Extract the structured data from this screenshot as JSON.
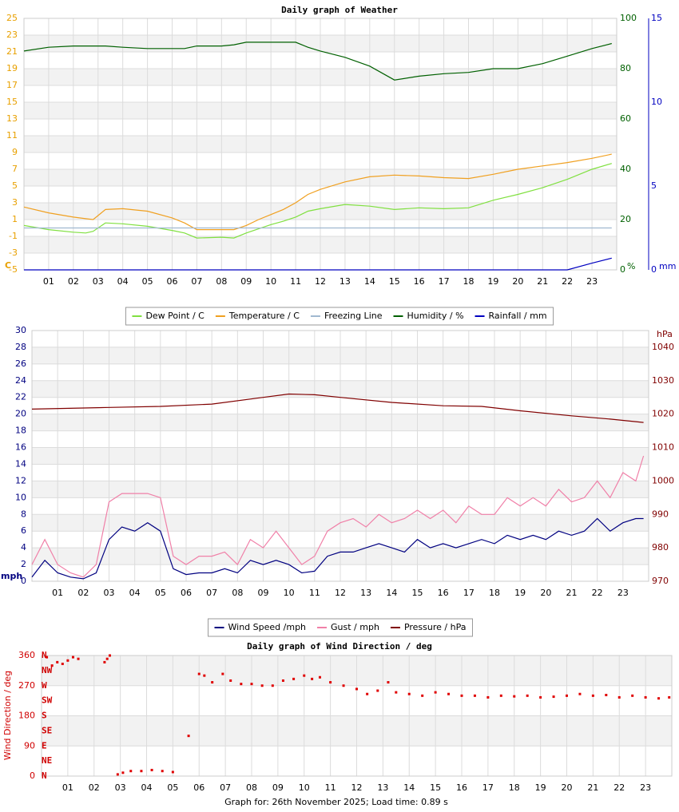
{
  "chart_data": [
    {
      "type": "line",
      "title": "Daily graph of Weather",
      "xlim": [
        0,
        24
      ],
      "xticks": [
        {
          "value": 1,
          "label": "01"
        },
        {
          "value": 2,
          "label": "02"
        },
        {
          "value": 3,
          "label": "03"
        },
        {
          "value": 4,
          "label": "04"
        },
        {
          "value": 5,
          "label": "05"
        },
        {
          "value": 6,
          "label": "06"
        },
        {
          "value": 7,
          "label": "07"
        },
        {
          "value": 8,
          "label": "08"
        },
        {
          "value": 9,
          "label": "09"
        },
        {
          "value": 10,
          "label": "10"
        },
        {
          "value": 11,
          "label": "11"
        },
        {
          "value": 12,
          "label": "12"
        },
        {
          "value": 13,
          "label": "13"
        },
        {
          "value": 14,
          "label": "14"
        },
        {
          "value": 15,
          "label": "15"
        },
        {
          "value": 16,
          "label": "16"
        },
        {
          "value": 17,
          "label": "17"
        },
        {
          "value": 18,
          "label": "18"
        },
        {
          "value": 19,
          "label": "19"
        },
        {
          "value": 20,
          "label": "20"
        },
        {
          "value": 21,
          "label": "21"
        },
        {
          "value": 22,
          "label": "22"
        },
        {
          "value": 23,
          "label": "23"
        }
      ],
      "ylim": [
        -5,
        25
      ],
      "yticks": [
        -5,
        -3,
        -1,
        1,
        3,
        5,
        7,
        9,
        11,
        13,
        15,
        17,
        19,
        21,
        23,
        25
      ],
      "ylabel": "C",
      "ycolor": "#e8a000",
      "y2lim": [
        0,
        100
      ],
      "y2ticks": [
        0,
        20,
        40,
        60,
        80,
        100
      ],
      "y2label": "%",
      "y2color": "#006000",
      "y3lim": [
        0,
        15
      ],
      "y3ticks": [
        0,
        5,
        10,
        15
      ],
      "y3label": "mm",
      "y3color": "#0000c0",
      "grid": true,
      "legend": "bottom",
      "x": [
        0,
        1,
        2,
        2.5,
        2.8,
        3.3,
        4,
        5,
        6,
        6.5,
        7,
        8,
        8.5,
        9,
        9.5,
        10,
        10.5,
        11,
        11.5,
        12,
        13,
        14,
        15,
        16,
        17,
        18,
        19,
        20,
        21,
        22,
        23,
        23.8
      ],
      "series": [
        {
          "name": "Dew Point / C",
          "color": "#80e040",
          "values": [
            0.3,
            -0.2,
            -0.5,
            -0.6,
            -0.4,
            0.6,
            0.5,
            0.2,
            -0.3,
            -0.6,
            -1.2,
            -1.1,
            -1.2,
            -0.6,
            -0.1,
            0.4,
            0.8,
            1.3,
            2.0,
            2.3,
            2.8,
            2.6,
            2.2,
            2.4,
            2.3,
            2.4,
            3.3,
            4.0,
            4.8,
            5.8,
            7.0,
            7.7
          ]
        },
        {
          "name": "Temperature / C",
          "color": "#f0a020",
          "values": [
            2.5,
            1.8,
            1.3,
            1.1,
            1.0,
            2.2,
            2.3,
            2.0,
            1.2,
            0.6,
            -0.2,
            -0.2,
            -0.2,
            0.3,
            1.0,
            1.6,
            2.2,
            3.0,
            4.0,
            4.6,
            5.5,
            6.1,
            6.3,
            6.2,
            6.0,
            5.9,
            6.4,
            7.0,
            7.4,
            7.8,
            8.3,
            8.8
          ]
        },
        {
          "name": "Freezing Line",
          "color": "#a0b8d0",
          "values": [
            0,
            0,
            0,
            0,
            0,
            0,
            0,
            0,
            0,
            0,
            0,
            0,
            0,
            0,
            0,
            0,
            0,
            0,
            0,
            0,
            0,
            0,
            0,
            0,
            0,
            0,
            0,
            0,
            0,
            0,
            0,
            0
          ]
        },
        {
          "name": "Humidity / %",
          "color": "#006000",
          "axis": "y2",
          "values": [
            87,
            88.5,
            89,
            89,
            89,
            89,
            88.5,
            88,
            88,
            88,
            89,
            89,
            89.5,
            90.5,
            90.5,
            90.5,
            90.5,
            90.5,
            88.5,
            87,
            84.5,
            81,
            75.5,
            77,
            78,
            78.5,
            80,
            80,
            82,
            85,
            88,
            90
          ]
        },
        {
          "name": "Rainfall / mm",
          "color": "#0000c0",
          "axis": "y3",
          "values": [
            0,
            0,
            0,
            0,
            0,
            0,
            0,
            0,
            0,
            0,
            0,
            0,
            0,
            0,
            0,
            0,
            0,
            0,
            0,
            0,
            0,
            0,
            0,
            0,
            0,
            0,
            0,
            0,
            0,
            0,
            0.4,
            0.7
          ]
        }
      ]
    },
    {
      "type": "line",
      "xlim": [
        0,
        24
      ],
      "xticks": [
        {
          "value": 1,
          "label": "01"
        },
        {
          "value": 2,
          "label": "02"
        },
        {
          "value": 3,
          "label": "03"
        },
        {
          "value": 4,
          "label": "04"
        },
        {
          "value": 5,
          "label": "05"
        },
        {
          "value": 6,
          "label": "06"
        },
        {
          "value": 7,
          "label": "07"
        },
        {
          "value": 8,
          "label": "08"
        },
        {
          "value": 9,
          "label": "09"
        },
        {
          "value": 10,
          "label": "10"
        },
        {
          "value": 11,
          "label": "11"
        },
        {
          "value": 12,
          "label": "12"
        },
        {
          "value": 13,
          "label": "13"
        },
        {
          "value": 14,
          "label": "14"
        },
        {
          "value": 15,
          "label": "15"
        },
        {
          "value": 16,
          "label": "16"
        },
        {
          "value": 17,
          "label": "17"
        },
        {
          "value": 18,
          "label": "18"
        },
        {
          "value": 19,
          "label": "19"
        },
        {
          "value": 20,
          "label": "20"
        },
        {
          "value": 21,
          "label": "21"
        },
        {
          "value": 22,
          "label": "22"
        },
        {
          "value": 23,
          "label": "23"
        }
      ],
      "ylim": [
        0,
        30
      ],
      "yticks": [
        0,
        2,
        4,
        6,
        8,
        10,
        12,
        14,
        16,
        18,
        20,
        22,
        24,
        26,
        28,
        30
      ],
      "ylabel": "mph",
      "ycolor": "#000080",
      "y2lim": [
        970,
        1045
      ],
      "y2ticks": [
        970,
        980,
        990,
        1000,
        1010,
        1020,
        1030,
        1040
      ],
      "y2label": "hPa",
      "y2color": "#800000",
      "grid": true,
      "legend": "bottom",
      "x": [
        0,
        0.5,
        1,
        1.5,
        2,
        2.5,
        3,
        3.5,
        4,
        4.5,
        5,
        5.5,
        6,
        6.5,
        7,
        7.5,
        8,
        8.5,
        9,
        9.5,
        10,
        10.5,
        11,
        11.5,
        12,
        12.5,
        13,
        13.5,
        14,
        14.5,
        15,
        15.5,
        16,
        16.5,
        17,
        17.5,
        18,
        18.5,
        19,
        19.5,
        20,
        20.5,
        21,
        21.5,
        22,
        22.5,
        23,
        23.5,
        23.8
      ],
      "series": [
        {
          "name": "Wind Speed /mph",
          "color": "#000080",
          "values": [
            0.5,
            2.5,
            1,
            0.5,
            0.3,
            1,
            5,
            6.5,
            6,
            7,
            6,
            1.5,
            0.8,
            1,
            1,
            1.5,
            1,
            2.5,
            2,
            2.5,
            2,
            1,
            1.2,
            3,
            3.5,
            3.5,
            4,
            4.5,
            4,
            3.5,
            5,
            4,
            4.5,
            4,
            4.5,
            5,
            4.5,
            5.5,
            5,
            5.5,
            5,
            6,
            5.5,
            6,
            7.5,
            6,
            7,
            7.5,
            7.5
          ]
        },
        {
          "name": "Gust / mph",
          "color": "#f080a8",
          "values": [
            2,
            5,
            2,
            1,
            0.5,
            2,
            9.5,
            10.5,
            10.5,
            10.5,
            10,
            3,
            2,
            3,
            3,
            3.5,
            2,
            5,
            4,
            6,
            4,
            2,
            3,
            6,
            7,
            7.5,
            6.5,
            8,
            7,
            7.5,
            8.5,
            7.5,
            8.5,
            7,
            9,
            8,
            8,
            10,
            9,
            10,
            9,
            11,
            9.5,
            10,
            12,
            10,
            13,
            12,
            15
          ]
        },
        {
          "name": "Pressure / hPa",
          "color": "#800000",
          "axis": "y2",
          "x": [
            0,
            3,
            5,
            7,
            9,
            10,
            11,
            12,
            14,
            16,
            17.5,
            19,
            21,
            22.5,
            23.8
          ],
          "values": [
            1021.5,
            1022,
            1022.3,
            1023,
            1025,
            1026,
            1025.8,
            1025,
            1023.5,
            1022.5,
            1022.3,
            1021,
            1019.5,
            1018.5,
            1017.5
          ]
        }
      ]
    },
    {
      "type": "scatter",
      "title": "Daily graph of Wind Direction / deg",
      "xlim": [
        0,
        24
      ],
      "xticks": [
        {
          "value": 1,
          "label": "01"
        },
        {
          "value": 2,
          "label": "02"
        },
        {
          "value": 3,
          "label": "03"
        },
        {
          "value": 4,
          "label": "04"
        },
        {
          "value": 5,
          "label": "05"
        },
        {
          "value": 6,
          "label": "06"
        },
        {
          "value": 7,
          "label": "07"
        },
        {
          "value": 8,
          "label": "08"
        },
        {
          "value": 9,
          "label": "09"
        },
        {
          "value": 10,
          "label": "10"
        },
        {
          "value": 11,
          "label": "11"
        },
        {
          "value": 12,
          "label": "12"
        },
        {
          "value": 13,
          "label": "13"
        },
        {
          "value": 14,
          "label": "14"
        },
        {
          "value": 15,
          "label": "15"
        },
        {
          "value": 16,
          "label": "16"
        },
        {
          "value": 17,
          "label": "17"
        },
        {
          "value": 18,
          "label": "18"
        },
        {
          "value": 19,
          "label": "19"
        },
        {
          "value": 20,
          "label": "20"
        },
        {
          "value": 21,
          "label": "21"
        },
        {
          "value": 22,
          "label": "22"
        },
        {
          "value": 23,
          "label": "23"
        }
      ],
      "ylim": [
        0,
        360
      ],
      "yticks": [
        0,
        90,
        180,
        270,
        360
      ],
      "ylabel": "Wind Direction / deg",
      "ycolor": "#d00000",
      "compass": [
        {
          "value": 360,
          "label": "N"
        },
        {
          "value": 315,
          "label": "NW"
        },
        {
          "value": 270,
          "label": "W"
        },
        {
          "value": 225,
          "label": "SW"
        },
        {
          "value": 180,
          "label": "S"
        },
        {
          "value": 135,
          "label": "SE"
        },
        {
          "value": 90,
          "label": "E"
        },
        {
          "value": 45,
          "label": "NE"
        },
        {
          "value": 0,
          "label": "N"
        }
      ],
      "grid": true,
      "color": "#e00000",
      "x": [
        0.2,
        0.4,
        0.6,
        0.8,
        1.0,
        1.2,
        1.4,
        2.4,
        2.5,
        2.6,
        2.9,
        3.1,
        3.4,
        3.8,
        4.2,
        4.6,
        5.0,
        5.6,
        6.0,
        6.2,
        6.5,
        6.9,
        7.2,
        7.6,
        8.0,
        8.4,
        8.8,
        9.2,
        9.6,
        10.0,
        10.3,
        10.6,
        11.0,
        11.5,
        12.0,
        12.4,
        12.8,
        13.2,
        13.5,
        14,
        14.5,
        15,
        15.5,
        16,
        16.5,
        17,
        17.5,
        18,
        18.5,
        19,
        19.5,
        20,
        20.5,
        21,
        21.5,
        22,
        22.5,
        23,
        23.5,
        23.9
      ],
      "values": [
        355,
        330,
        340,
        335,
        345,
        355,
        350,
        340,
        350,
        360,
        5,
        10,
        15,
        15,
        18,
        15,
        12,
        120,
        305,
        300,
        280,
        305,
        285,
        275,
        275,
        270,
        270,
        285,
        290,
        300,
        290,
        295,
        280,
        270,
        260,
        245,
        255,
        280,
        250,
        245,
        240,
        250,
        245,
        240,
        240,
        235,
        240,
        238,
        240,
        235,
        237,
        240,
        245,
        240,
        242,
        235,
        240,
        235,
        232,
        235
      ]
    }
  ],
  "footer": "Graph for: 26th November 2025; Load time: 0.89 s"
}
